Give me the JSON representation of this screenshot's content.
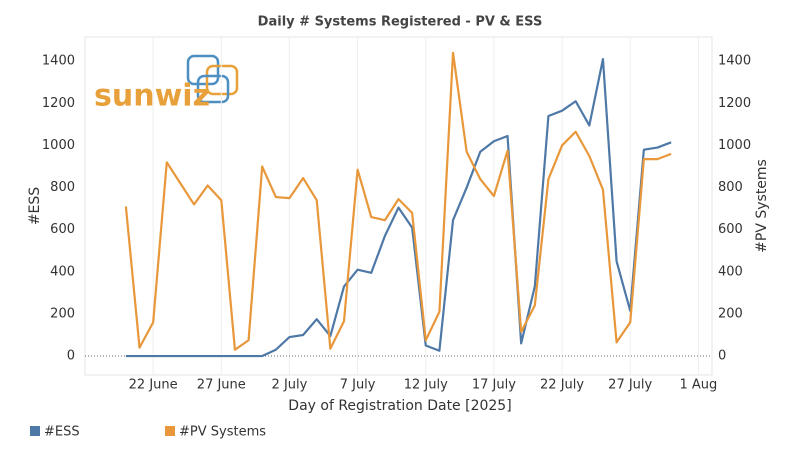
{
  "chart_data": {
    "type": "line",
    "title": "Daily # Systems Registered - PV & ESS",
    "logo": "sunwiz",
    "x_label": "Day of Registration Date [2025]",
    "y_label": "#ESS",
    "y2_label": "#PV Systems",
    "x": [
      "2025-06-20",
      "2025-06-21",
      "2025-06-22",
      "2025-06-23",
      "2025-06-24",
      "2025-06-25",
      "2025-06-26",
      "2025-06-27",
      "2025-06-28",
      "2025-06-29",
      "2025-06-30",
      "2025-07-01",
      "2025-07-02",
      "2025-07-03",
      "2025-07-04",
      "2025-07-05",
      "2025-07-06",
      "2025-07-07",
      "2025-07-08",
      "2025-07-09",
      "2025-07-10",
      "2025-07-11",
      "2025-07-12",
      "2025-07-13",
      "2025-07-14",
      "2025-07-15",
      "2025-07-16",
      "2025-07-17",
      "2025-07-18",
      "2025-07-19",
      "2025-07-20",
      "2025-07-21",
      "2025-07-22",
      "2025-07-23",
      "2025-07-24",
      "2025-07-25",
      "2025-07-26",
      "2025-07-27",
      "2025-07-28",
      "2025-07-29",
      "2025-07-30"
    ],
    "series": [
      {
        "name": "#ESS",
        "color": "#4e79a7",
        "axis": "y",
        "values": [
          0,
          0,
          0,
          0,
          0,
          0,
          0,
          0,
          0,
          0,
          0,
          30,
          90,
          100,
          175,
          95,
          330,
          410,
          395,
          570,
          705,
          610,
          50,
          25,
          645,
          800,
          970,
          1020,
          1045,
          60,
          330,
          1140,
          1165,
          1210,
          1095,
          1410,
          450,
          215,
          980,
          990,
          1015
        ]
      },
      {
        "name": "#PV Systems",
        "color": "#e8973a",
        "axis": "y2",
        "values": [
          710,
          40,
          160,
          920,
          820,
          720,
          810,
          740,
          30,
          75,
          900,
          755,
          750,
          845,
          740,
          35,
          165,
          885,
          660,
          645,
          745,
          680,
          75,
          210,
          1440,
          970,
          840,
          760,
          975,
          115,
          240,
          840,
          1000,
          1065,
          950,
          790,
          65,
          160,
          935,
          935,
          960
        ]
      }
    ],
    "xlim": [
      "2025-06-17",
      "2025-08-02"
    ],
    "xticks": [
      {
        "value": "2025-06-22",
        "label": "22 June"
      },
      {
        "value": "2025-06-27",
        "label": "27 June"
      },
      {
        "value": "2025-07-02",
        "label": "2 July"
      },
      {
        "value": "2025-07-07",
        "label": "7 July"
      },
      {
        "value": "2025-07-12",
        "label": "12 July"
      },
      {
        "value": "2025-07-17",
        "label": "17 July"
      },
      {
        "value": "2025-07-22",
        "label": "22 July"
      },
      {
        "value": "2025-07-27",
        "label": "27 July"
      },
      {
        "value": "2025-08-01",
        "label": "1 Aug"
      }
    ],
    "ylim": [
      -90,
      1515
    ],
    "yticks": [
      0,
      200,
      400,
      600,
      800,
      1000,
      1200,
      1400
    ],
    "y2lim": [
      -90,
      1515
    ],
    "y2ticks": [
      0,
      200,
      400,
      600,
      800,
      1000,
      1200,
      1400
    ],
    "xgrid": true,
    "legend": "bottom-left"
  }
}
